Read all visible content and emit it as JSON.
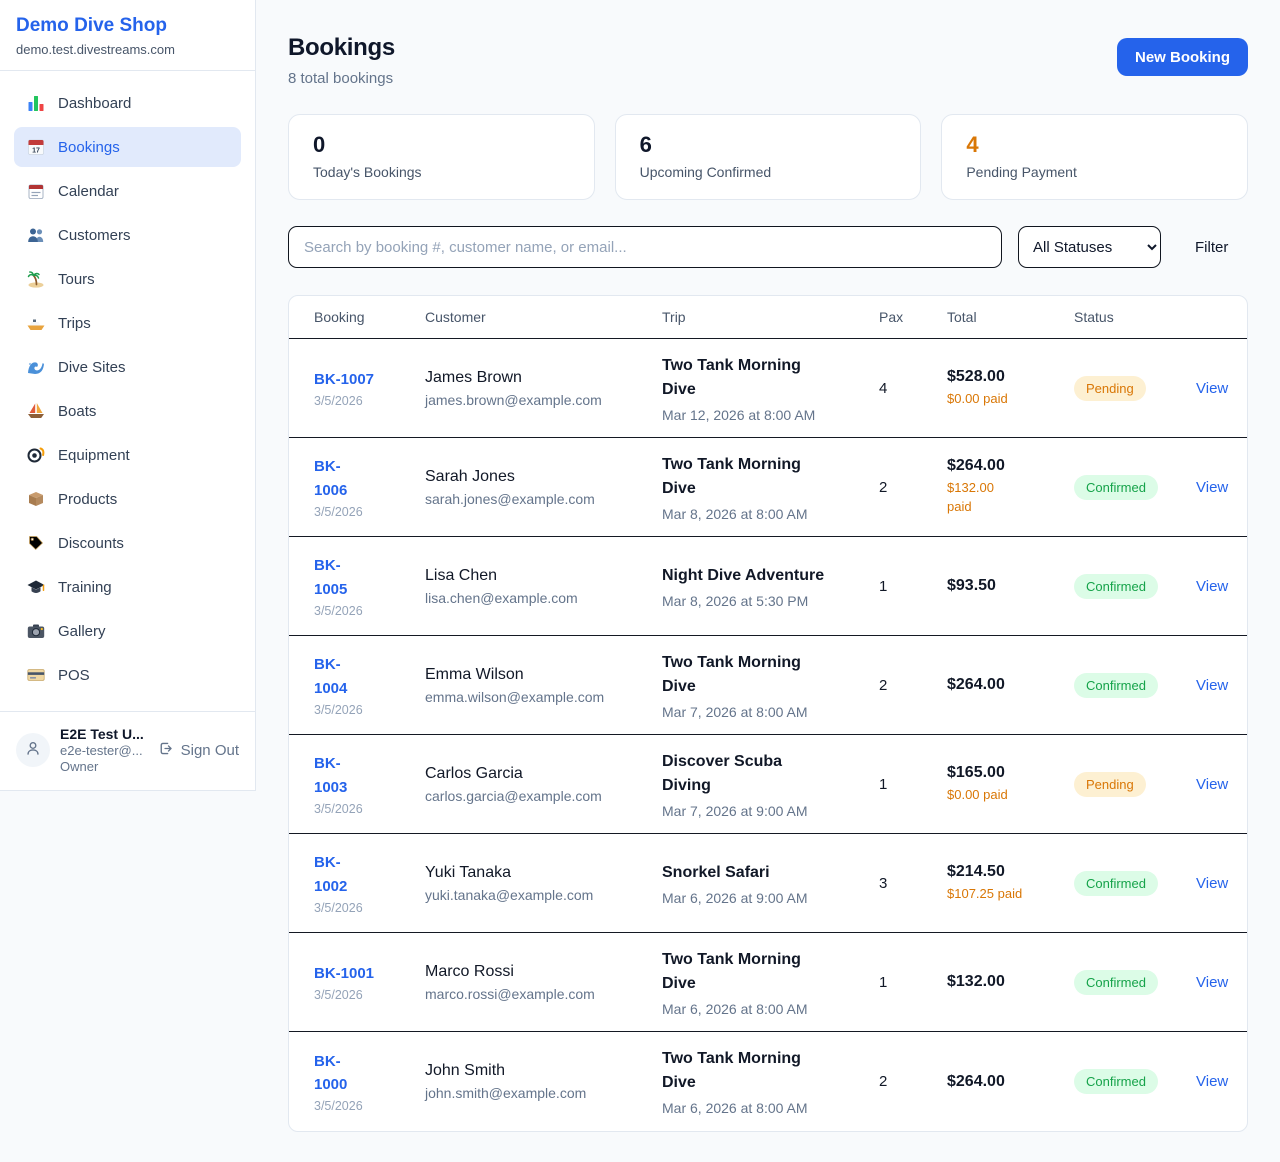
{
  "sidebar": {
    "brand": {
      "name": "Demo Dive Shop",
      "domain": "demo.test.divestreams.com"
    },
    "nav": [
      {
        "label": "Dashboard",
        "icon": "dashboard-icon",
        "active": false
      },
      {
        "label": "Bookings",
        "icon": "bookings-icon",
        "active": true
      },
      {
        "label": "Calendar",
        "icon": "calendar-icon",
        "active": false
      },
      {
        "label": "Customers",
        "icon": "customers-icon",
        "active": false
      },
      {
        "label": "Tours",
        "icon": "tours-icon",
        "active": false
      },
      {
        "label": "Trips",
        "icon": "trips-icon",
        "active": false
      },
      {
        "label": "Dive Sites",
        "icon": "dive-sites-icon",
        "active": false
      },
      {
        "label": "Boats",
        "icon": "boats-icon",
        "active": false
      },
      {
        "label": "Equipment",
        "icon": "equipment-icon",
        "active": false
      },
      {
        "label": "Products",
        "icon": "products-icon",
        "active": false
      },
      {
        "label": "Discounts",
        "icon": "discounts-icon",
        "active": false
      },
      {
        "label": "Training",
        "icon": "training-icon",
        "active": false
      },
      {
        "label": "Gallery",
        "icon": "gallery-icon",
        "active": false
      },
      {
        "label": "POS",
        "icon": "pos-icon",
        "active": false
      }
    ],
    "user": {
      "name": "E2E Test U...",
      "email": "e2e-tester@...",
      "role": "Owner",
      "sign_out_label": "Sign Out"
    }
  },
  "header": {
    "title": "Bookings",
    "subtitle": "8 total bookings",
    "new_booking_label": "New Booking"
  },
  "stats": [
    {
      "value": "0",
      "label": "Today's Bookings",
      "color": "#0f172a"
    },
    {
      "value": "6",
      "label": "Upcoming Confirmed",
      "color": "#0f172a"
    },
    {
      "value": "4",
      "label": "Pending Payment",
      "color": "#d97706"
    }
  ],
  "filters": {
    "search_placeholder": "Search by booking #, customer name, or email...",
    "status_selected": "All Statuses",
    "filter_label": "Filter"
  },
  "table": {
    "columns": [
      "Booking",
      "Customer",
      "Trip",
      "Pax",
      "Total",
      "Status"
    ],
    "rows": [
      {
        "number": "BK-1007",
        "date": "3/5/2026",
        "customer": "James Brown",
        "email": "james.brown@example.com",
        "trip": "Two Tank Morning\nDive",
        "trip_datetime": "Mar 12, 2026 at 8:00 AM",
        "pax": "4",
        "total": "$528.00",
        "paid": "$0.00 paid",
        "status": "Pending",
        "view": "View"
      },
      {
        "number": "BK-\n1006",
        "date": "3/5/2026",
        "customer": "Sarah Jones",
        "email": "sarah.jones@example.com",
        "trip": "Two Tank Morning\nDive",
        "trip_datetime": "Mar 8, 2026 at 8:00 AM",
        "pax": "2",
        "total": "$264.00",
        "paid": "$132.00\npaid",
        "status": "Confirmed",
        "view": "View"
      },
      {
        "number": "BK-\n1005",
        "date": "3/5/2026",
        "customer": "Lisa Chen",
        "email": "lisa.chen@example.com",
        "trip": "Night Dive Adventure",
        "trip_datetime": "Mar 8, 2026 at 5:30 PM",
        "pax": "1",
        "total": "$93.50",
        "paid": null,
        "status": "Confirmed",
        "view": "View"
      },
      {
        "number": "BK-\n1004",
        "date": "3/5/2026",
        "customer": "Emma Wilson",
        "email": "emma.wilson@example.com",
        "trip": "Two Tank Morning\nDive",
        "trip_datetime": "Mar 7, 2026 at 8:00 AM",
        "pax": "2",
        "total": "$264.00",
        "paid": null,
        "status": "Confirmed",
        "view": "View"
      },
      {
        "number": "BK-\n1003",
        "date": "3/5/2026",
        "customer": "Carlos Garcia",
        "email": "carlos.garcia@example.com",
        "trip": "Discover Scuba\nDiving",
        "trip_datetime": "Mar 7, 2026 at 9:00 AM",
        "pax": "1",
        "total": "$165.00",
        "paid": "$0.00 paid",
        "status": "Pending",
        "view": "View"
      },
      {
        "number": "BK-\n1002",
        "date": "3/5/2026",
        "customer": "Yuki Tanaka",
        "email": "yuki.tanaka@example.com",
        "trip": "Snorkel Safari",
        "trip_datetime": "Mar 6, 2026 at 9:00 AM",
        "pax": "3",
        "total": "$214.50",
        "paid": "$107.25 paid",
        "status": "Confirmed",
        "view": "View"
      },
      {
        "number": "BK-1001",
        "date": "3/5/2026",
        "customer": "Marco Rossi",
        "email": "marco.rossi@example.com",
        "trip": "Two Tank Morning\nDive",
        "trip_datetime": "Mar 6, 2026 at 8:00 AM",
        "pax": "1",
        "total": "$132.00",
        "paid": null,
        "status": "Confirmed",
        "view": "View"
      },
      {
        "number": "BK-\n1000",
        "date": "3/5/2026",
        "customer": "John Smith",
        "email": "john.smith@example.com",
        "trip": "Two Tank Morning\nDive",
        "trip_datetime": "Mar 6, 2026 at 8:00 AM",
        "pax": "2",
        "total": "$264.00",
        "paid": null,
        "status": "Confirmed",
        "view": "View"
      }
    ]
  }
}
